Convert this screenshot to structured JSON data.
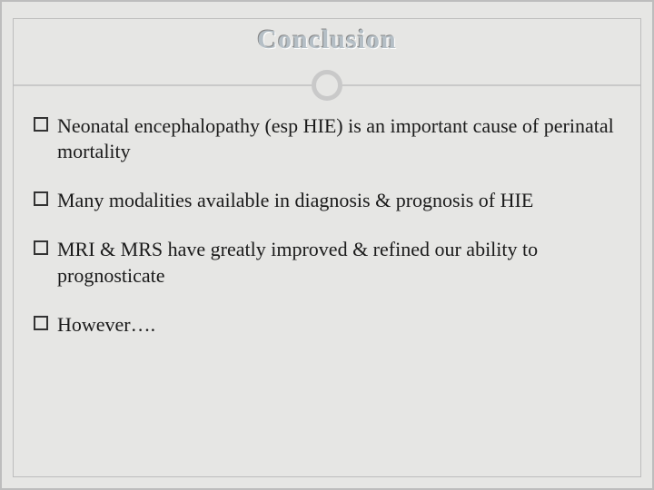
{
  "slide": {
    "title": "Conclusion",
    "title_color": "#b5bfc6",
    "title_fontsize": 30,
    "background_color": "#e6e6e4",
    "border_color": "#bdbdbd",
    "divider": {
      "line_color": "#c9c9c9",
      "circle_border_color": "#c9c9c9",
      "circle_border_width": 5,
      "circle_diameter": 34
    },
    "bullet_glyph": "square-outline",
    "body_fontsize": 22,
    "body_color": "#1a1a1a",
    "bullets": [
      "Neonatal encephalopathy (esp HIE) is an important cause of perinatal mortality",
      "Many modalities available in diagnosis & prognosis of HIE",
      "MRI & MRS have greatly improved & refined our ability to prognosticate",
      "However…."
    ]
  }
}
